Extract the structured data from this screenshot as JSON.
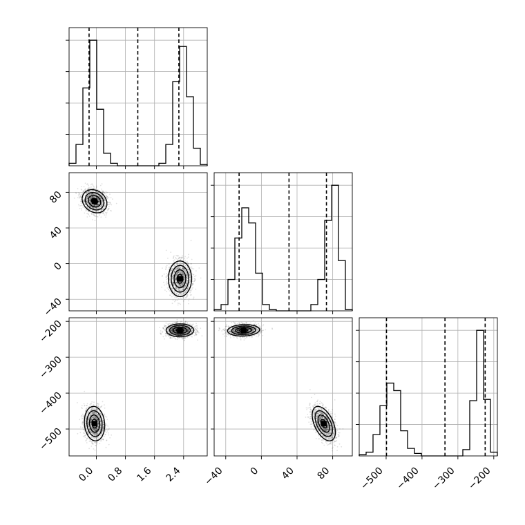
{
  "chart_data": {
    "type": "corner",
    "title": "",
    "grid": true,
    "parameters": [
      {
        "label": "",
        "range": [
          -0.75,
          3.05
        ],
        "ticks": [
          "0.0",
          "0.8",
          "1.6",
          "2.4"
        ],
        "tick_values": [
          0.0,
          0.8,
          1.6,
          2.4
        ]
      },
      {
        "label": "",
        "range": [
          -53,
          102
        ],
        "ticks": [
          "−40",
          "0",
          "40",
          "80"
        ],
        "tick_values": [
          -40,
          0,
          40,
          80
        ]
      },
      {
        "label": "",
        "range": [
          -575,
          -190
        ],
        "ticks": [
          "−500",
          "−400",
          "−300",
          "−200"
        ],
        "tick_values": [
          -500,
          -400,
          -300,
          -200
        ]
      }
    ],
    "histograms": [
      {
        "parameter": 0,
        "bin_edges": [
          -0.75,
          -0.56,
          -0.37,
          -0.18,
          0.01,
          0.2,
          0.39,
          0.58,
          0.77,
          0.96,
          1.15,
          1.34,
          1.53,
          1.72,
          1.91,
          2.1,
          2.29,
          2.48,
          2.67,
          2.86,
          3.05
        ],
        "counts": [
          0.02,
          0.17,
          0.62,
          1.0,
          0.45,
          0.1,
          0.02,
          0.0,
          0.0,
          0.0,
          0.0,
          0.0,
          0.0,
          0.02,
          0.17,
          0.67,
          0.95,
          0.55,
          0.14,
          0.01
        ],
        "quantiles": [
          -0.2,
          1.14,
          2.27
        ]
      },
      {
        "parameter": 1,
        "bin_edges": [
          -53,
          -45.25,
          -37.5,
          -29.75,
          -22,
          -14.25,
          -6.5,
          1.25,
          9,
          16.75,
          24.5,
          32.25,
          40,
          47.75,
          55.5,
          63.25,
          71,
          78.75,
          86.5,
          94.25,
          102
        ],
        "counts": [
          0.01,
          0.05,
          0.25,
          0.58,
          0.82,
          0.7,
          0.3,
          0.05,
          0.01,
          0.0,
          0.0,
          0.0,
          0.0,
          0.0,
          0.05,
          0.25,
          0.72,
          1.0,
          0.4,
          0.01
        ],
        "quantiles": [
          -25,
          31,
          73
        ]
      },
      {
        "parameter": 2,
        "bin_edges": [
          -575,
          -555.75,
          -536.5,
          -517.25,
          -498,
          -478.75,
          -459.5,
          -440.25,
          -421,
          -401.75,
          -382.5,
          -363.25,
          -344,
          -324.75,
          -305.5,
          -286.25,
          -267,
          -247.75,
          -228.5,
          -209.25,
          -190
        ],
        "counts": [
          0.01,
          0.03,
          0.17,
          0.4,
          0.58,
          0.52,
          0.2,
          0.06,
          0.02,
          0.0,
          0.0,
          0.0,
          0.0,
          0.0,
          0.0,
          0.05,
          0.44,
          1.0,
          0.45,
          0.03
        ],
        "quantiles": [
          -499,
          -336,
          -224
        ]
      }
    ],
    "pairs": [
      {
        "x_param": 0,
        "y_param": 1,
        "modes": [
          {
            "center": [
              -0.05,
              70
            ],
            "sd": [
              0.17,
              6.5
            ],
            "corr": -0.2,
            "weight": 0.5
          },
          {
            "center": [
              2.3,
              -17
            ],
            "sd": [
              0.16,
              10
            ],
            "corr": 0.0,
            "weight": 0.5
          }
        ]
      },
      {
        "x_param": 0,
        "y_param": 2,
        "modes": [
          {
            "center": [
              -0.05,
              -485
            ],
            "sd": [
              0.14,
              24
            ],
            "corr": -0.1,
            "weight": 0.5
          },
          {
            "center": [
              2.3,
              -225
            ],
            "sd": [
              0.19,
              9
            ],
            "corr": 0.0,
            "weight": 0.5
          }
        ]
      },
      {
        "x_param": 1,
        "y_param": 2,
        "modes": [
          {
            "center": [
              -20,
              -225
            ],
            "sd": [
              9,
              8
            ],
            "corr": 0.1,
            "weight": 0.5
          },
          {
            "center": [
              70,
              -485
            ],
            "sd": [
              6.5,
              24
            ],
            "corr": -0.5,
            "weight": 0.5
          }
        ]
      }
    ]
  }
}
